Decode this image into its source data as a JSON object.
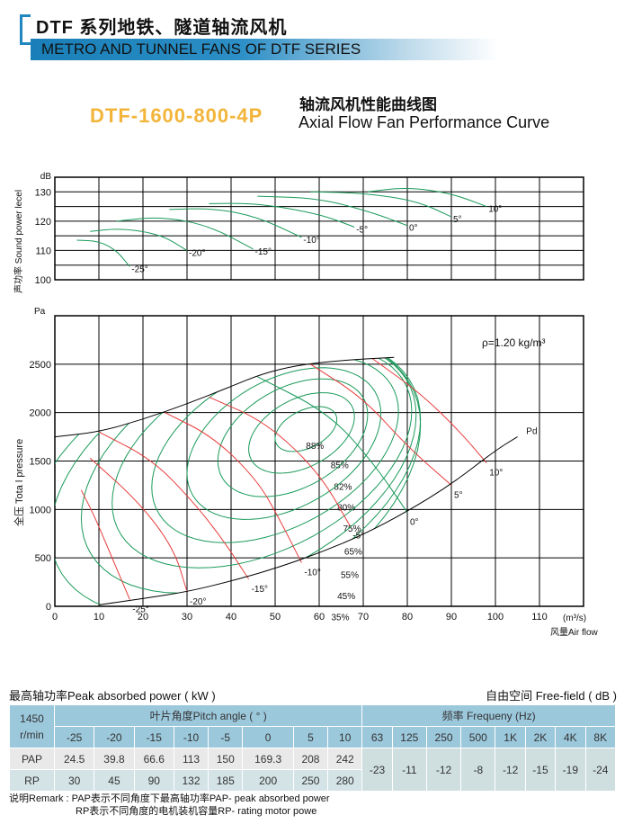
{
  "header": {
    "title_cn": "DTF 系列地铁、隧道轴流风机",
    "title_en": "METRO AND TUNNEL FANS OF DTF SERIES",
    "brand_color": "#1f86bf"
  },
  "model": {
    "name": "DTF-1600-800-4P",
    "color": "#f2b53a",
    "curve_cn": "轴流风机性能曲线图",
    "curve_en": "Axial Flow Fan Performance Curve"
  },
  "chart_data": [
    {
      "type": "line",
      "ylabel": "声功率 Sound power lecel",
      "yunit": "dB",
      "ylim": [
        100,
        135
      ],
      "yticks": [
        "100",
        "110",
        "120",
        "130"
      ],
      "xlim": [
        0,
        120
      ],
      "grid": true,
      "series": [
        {
          "name": "-25°",
          "points": [
            [
              5,
              113.5
            ],
            [
              10,
              113.2
            ],
            [
              14,
              110
            ],
            [
              17,
              104.5
            ]
          ]
        },
        {
          "name": "-20°",
          "points": [
            [
              8,
              116.5
            ],
            [
              15,
              117.6
            ],
            [
              24,
              115.5
            ],
            [
              30,
              110
            ]
          ]
        },
        {
          "name": "-15°",
          "points": [
            [
              14,
              120
            ],
            [
              24,
              121.6
            ],
            [
              35,
              118.5
            ],
            [
              45,
              110.5
            ]
          ]
        },
        {
          "name": "-10°",
          "points": [
            [
              26,
              124
            ],
            [
              36,
              124.4
            ],
            [
              46,
              121.5
            ],
            [
              56,
              114.5
            ]
          ]
        },
        {
          "name": "-5°",
          "points": [
            [
              35,
              126
            ],
            [
              46,
              126.1
            ],
            [
              60,
              122.5
            ],
            [
              68,
              118
            ]
          ]
        },
        {
          "name": "0°",
          "points": [
            [
              46,
              128.5
            ],
            [
              60,
              127.8
            ],
            [
              72,
              123
            ],
            [
              80,
              118.5
            ]
          ]
        },
        {
          "name": "5°",
          "points": [
            [
              58,
              130
            ],
            [
              70,
              129.6
            ],
            [
              82,
              127
            ],
            [
              90,
              121.5
            ]
          ]
        },
        {
          "name": "10°",
          "points": [
            [
              71,
              130
            ],
            [
              80,
              131.6
            ],
            [
              90,
              129.5
            ],
            [
              98,
              125
            ]
          ]
        }
      ]
    },
    {
      "type": "line",
      "ylabel": "全压 Tota l pressure",
      "yunit": "Pa",
      "xlabel": "风量Air flow",
      "xunit": "(m³/s)",
      "xlim": [
        0,
        120
      ],
      "ylim": [
        0,
        3000
      ],
      "xticks": [
        "0",
        "10",
        "20",
        "30",
        "40",
        "50",
        "60",
        "70",
        "80",
        "90",
        "100",
        "110"
      ],
      "yticks": [
        "0",
        "500",
        "1000",
        "1500",
        "2000",
        "2500"
      ],
      "grid": true,
      "annotation": "ρ=1.20 kg/m³",
      "stall_line": [
        [
          0,
          1750
        ],
        [
          10,
          1800
        ],
        [
          20,
          1930
        ],
        [
          30,
          2090
        ],
        [
          40,
          2270
        ],
        [
          47,
          2400
        ],
        [
          55,
          2490
        ],
        [
          65,
          2540
        ],
        [
          77,
          2570
        ]
      ],
      "pd_line": {
        "name": "Pd",
        "points": [
          [
            10,
            15
          ],
          [
            20,
            80
          ],
          [
            30,
            150
          ],
          [
            40,
            260
          ],
          [
            50,
            390
          ],
          [
            60,
            550
          ],
          [
            70,
            740
          ],
          [
            80,
            980
          ],
          [
            90,
            1260
          ],
          [
            100,
            1610
          ],
          [
            105,
            1750
          ]
        ]
      },
      "pitch_curves": [
        {
          "name": "-25°",
          "points": [
            [
              6,
              1200
            ],
            [
              9,
              930
            ],
            [
              13,
              500
            ],
            [
              17,
              70
            ]
          ]
        },
        {
          "name": "-20°",
          "points": [
            [
              8,
              1530
            ],
            [
              19,
              1080
            ],
            [
              27,
              600
            ],
            [
              30,
              150
            ]
          ]
        },
        {
          "name": "-15°",
          "points": [
            [
              10,
              1800
            ],
            [
              22,
              1520
            ],
            [
              31,
              1100
            ],
            [
              38,
              700
            ],
            [
              44,
              280
            ]
          ]
        },
        {
          "name": "-10°",
          "points": [
            [
              25,
              2000
            ],
            [
              36,
              1750
            ],
            [
              46,
              1300
            ],
            [
              51,
              900
            ],
            [
              56,
              450
            ]
          ]
        },
        {
          "name": "-5°",
          "points": [
            [
              35,
              2160
            ],
            [
              48,
              1900
            ],
            [
              60,
              1380
            ],
            [
              67,
              830
            ]
          ]
        },
        {
          "name": "0°",
          "points": [
            [
              46,
              2370
            ],
            [
              62,
              2000
            ],
            [
              72,
              1500
            ],
            [
              80,
              970
            ]
          ]
        },
        {
          "name": "5°",
          "points": [
            [
              58,
              2500
            ],
            [
              70,
              2150
            ],
            [
              80,
              1650
            ],
            [
              90,
              1250
            ]
          ]
        },
        {
          "name": "10°",
          "points": [
            [
              72,
              2560
            ],
            [
              83,
              2200
            ],
            [
              92,
              1800
            ],
            [
              98,
              1480
            ]
          ]
        }
      ],
      "efficiency_contours": [
        {
          "name": "88%",
          "center": [
            57,
            1830
          ],
          "rx": 7,
          "ry": 210
        },
        {
          "name": "85%",
          "center": [
            56,
            1790
          ],
          "rx": 12,
          "ry": 380
        },
        {
          "name": "82%",
          "center": [
            54,
            1740
          ],
          "rx": 17,
          "ry": 560
        },
        {
          "name": "80%",
          "center": [
            52,
            1680
          ],
          "rx": 22,
          "ry": 720
        },
        {
          "name": "75%",
          "center": [
            50,
            1620
          ],
          "rx": 28,
          "ry": 880
        },
        {
          "name": "65%",
          "center": [
            47,
            1540
          ],
          "rx": 34,
          "ry": 1040
        },
        {
          "name": "55%",
          "center": [
            44,
            1440
          ],
          "rx": 38,
          "ry": 1190
        },
        {
          "name": "45%",
          "center": [
            41,
            1340
          ],
          "rx": 42,
          "ry": 1310
        },
        {
          "name": "35%",
          "center": [
            38,
            1240
          ],
          "rx": 45,
          "ry": 1440
        }
      ]
    }
  ],
  "table": {
    "left_caption": "最高轴功率Peak absorbed power ( kW )",
    "right_caption": "自由空间 Free-field ( dB )",
    "speed": "1450 r/min",
    "pitch_header": "叶片角度Pitch angle ( ° )",
    "freq_header": "频率 Frequeny (Hz)",
    "angles": [
      "-25",
      "-20",
      "-15",
      "-10",
      "-5",
      "0",
      "5",
      "10"
    ],
    "pap_label": "PAP",
    "pap": [
      "24.5",
      "39.8",
      "66.6",
      "113",
      "150",
      "169.3",
      "208",
      "242"
    ],
    "rp_label": "RP",
    "rp": [
      "30",
      "45",
      "90",
      "132",
      "185",
      "200",
      "250",
      "280"
    ],
    "freqs": [
      "63",
      "125",
      "250",
      "500",
      "1K",
      "2K",
      "4K",
      "8K"
    ],
    "freq_values": [
      "-23",
      "-11",
      "-12",
      "-8",
      "-12",
      "-15",
      "-19",
      "-24"
    ]
  },
  "remarks": [
    "说明Remark : PAP表示不同角度下最高轴功率PAP- peak absorbed power",
    "RP表示不同角度的电机装机容量RP- rating motor powe"
  ],
  "colors": {
    "efficiency": "#1a9a5a",
    "pitch": "#e83b3b",
    "table_header": "#9cc8dc"
  }
}
